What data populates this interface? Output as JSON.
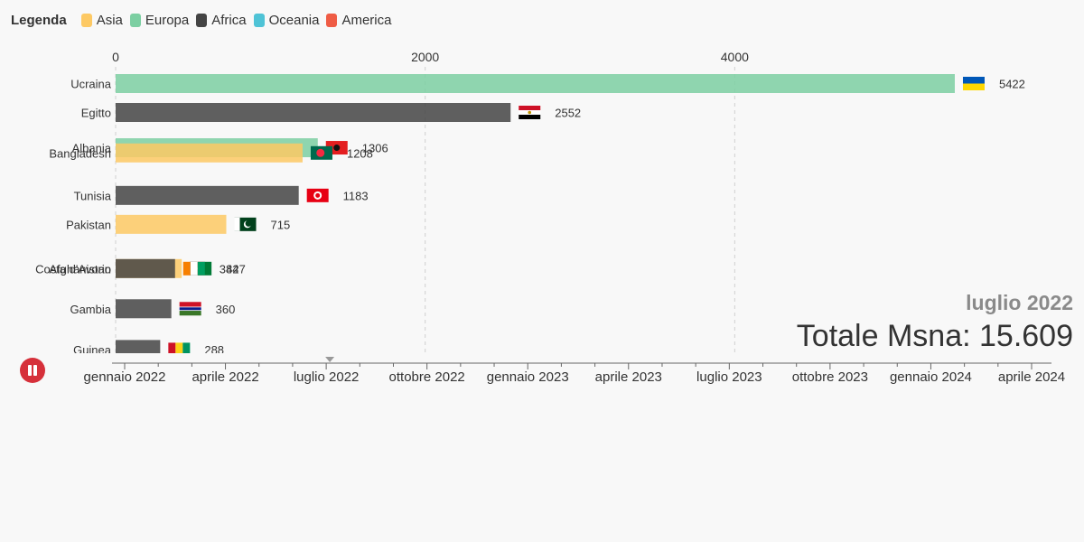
{
  "legend": {
    "title": "Legenda",
    "items": [
      {
        "label": "Asia",
        "color": "#fdc964"
      },
      {
        "label": "Europa",
        "color": "#7ccfa2"
      },
      {
        "label": "Africa",
        "color": "#444444"
      },
      {
        "label": "Oceania",
        "color": "#4fc3d6"
      },
      {
        "label": "America",
        "color": "#ef5c45"
      }
    ]
  },
  "chart_data": {
    "type": "bar",
    "orientation": "horizontal",
    "xlim": [
      0,
      6000
    ],
    "x_ticks": [
      0,
      2000,
      4000
    ],
    "x_tick_labels": [
      "0",
      "2000",
      "4000"
    ],
    "grid": true,
    "bars": [
      {
        "label": "Ucraina",
        "value": 5422,
        "value_label": "5422",
        "continent": "Europa",
        "flag": "ua",
        "rank": 0
      },
      {
        "label": "Egitto",
        "value": 2552,
        "value_label": "2552",
        "continent": "Africa",
        "flag": "eg",
        "rank": 1
      },
      {
        "label": "Albania",
        "value": 1306,
        "value_label": "1306",
        "continent": "Europa",
        "flag": "al",
        "rank": 2.22
      },
      {
        "label": "Bangladesh",
        "value": 1208,
        "value_label": "1208",
        "continent": "Asia",
        "flag": "bd",
        "rank": 2.4
      },
      {
        "label": "Tunisia",
        "value": 1183,
        "value_label": "1183",
        "continent": "Africa",
        "flag": "tn",
        "rank": 3.87
      },
      {
        "label": "Pakistan",
        "value": 715,
        "value_label": "715",
        "continent": "Asia",
        "flag": "pk",
        "rank": 4.87
      },
      {
        "label": "Afghanistan",
        "value": 427,
        "value_label": "427",
        "continent": "Asia",
        "flag": "af",
        "rank": 6.4
      },
      {
        "label": "Costa d'Avorio",
        "value": 384,
        "value_label": "384",
        "continent": "Africa",
        "flag": "ci",
        "rank": 6.4
      },
      {
        "label": "Gambia",
        "value": 360,
        "value_label": "360",
        "continent": "Africa",
        "flag": "gm",
        "rank": 7.79
      },
      {
        "label": "Guinea",
        "value": 288,
        "value_label": "288",
        "continent": "Africa",
        "flag": "gn",
        "rank": 9.2
      }
    ]
  },
  "current_date_label": "luglio 2022",
  "total_label": "Totale Msna: 15.609",
  "timeline": {
    "labels": [
      "gennaio 2022",
      "aprile 2022",
      "luglio 2022",
      "ottobre 2022",
      "gennaio 2023",
      "aprile 2023",
      "luglio 2023",
      "ottobre 2023",
      "gennaio 2024",
      "aprile 2024"
    ],
    "current_index": 2
  },
  "controls": {
    "play_state": "pause-icon"
  }
}
